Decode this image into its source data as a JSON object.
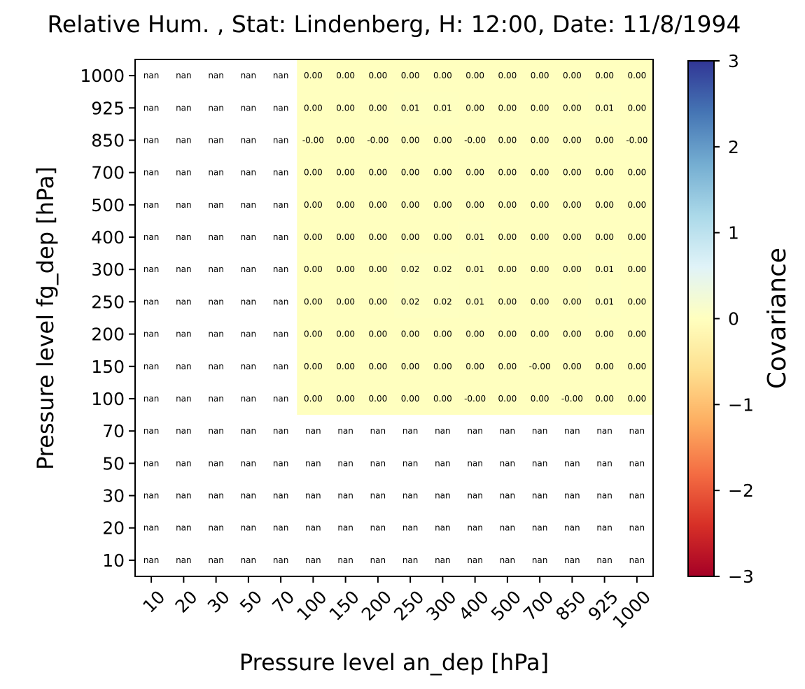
{
  "chart_data": {
    "type": "heatmap",
    "title": "Relative Hum. , Stat: Lindenberg, H: 12:00, Date: 11/8/1994",
    "xlabel": "Pressure level an_dep [hPa]",
    "ylabel": "Pressure level fg_dep [hPa]",
    "x_categories": [
      "10",
      "20",
      "30",
      "50",
      "70",
      "100",
      "150",
      "200",
      "250",
      "300",
      "400",
      "500",
      "700",
      "850",
      "925",
      "1000"
    ],
    "y_categories": [
      "1000",
      "925",
      "850",
      "700",
      "500",
      "400",
      "300",
      "250",
      "200",
      "150",
      "100",
      "70",
      "50",
      "30",
      "20",
      "10"
    ],
    "cells": [
      [
        "nan",
        "nan",
        "nan",
        "nan",
        "nan",
        "0.00",
        "0.00",
        "0.00",
        "0.00",
        "0.00",
        "0.00",
        "0.00",
        "0.00",
        "0.00",
        "0.00",
        "0.00"
      ],
      [
        "nan",
        "nan",
        "nan",
        "nan",
        "nan",
        "0.00",
        "0.00",
        "0.00",
        "0.01",
        "0.01",
        "0.00",
        "0.00",
        "0.00",
        "0.00",
        "0.01",
        "0.00"
      ],
      [
        "nan",
        "nan",
        "nan",
        "nan",
        "nan",
        "-0.00",
        "0.00",
        "-0.00",
        "0.00",
        "0.00",
        "-0.00",
        "0.00",
        "0.00",
        "0.00",
        "0.00",
        "-0.00"
      ],
      [
        "nan",
        "nan",
        "nan",
        "nan",
        "nan",
        "0.00",
        "0.00",
        "0.00",
        "0.00",
        "0.00",
        "0.00",
        "0.00",
        "0.00",
        "0.00",
        "0.00",
        "0.00"
      ],
      [
        "nan",
        "nan",
        "nan",
        "nan",
        "nan",
        "0.00",
        "0.00",
        "0.00",
        "0.00",
        "0.00",
        "0.00",
        "0.00",
        "0.00",
        "0.00",
        "0.00",
        "0.00"
      ],
      [
        "nan",
        "nan",
        "nan",
        "nan",
        "nan",
        "0.00",
        "0.00",
        "0.00",
        "0.00",
        "0.00",
        "0.01",
        "0.00",
        "0.00",
        "0.00",
        "0.00",
        "0.00"
      ],
      [
        "nan",
        "nan",
        "nan",
        "nan",
        "nan",
        "0.00",
        "0.00",
        "0.00",
        "0.02",
        "0.02",
        "0.01",
        "0.00",
        "0.00",
        "0.00",
        "0.01",
        "0.00"
      ],
      [
        "nan",
        "nan",
        "nan",
        "nan",
        "nan",
        "0.00",
        "0.00",
        "0.00",
        "0.02",
        "0.02",
        "0.01",
        "0.00",
        "0.00",
        "0.00",
        "0.01",
        "0.00"
      ],
      [
        "nan",
        "nan",
        "nan",
        "nan",
        "nan",
        "0.00",
        "0.00",
        "0.00",
        "0.00",
        "0.00",
        "0.00",
        "0.00",
        "0.00",
        "0.00",
        "0.00",
        "0.00"
      ],
      [
        "nan",
        "nan",
        "nan",
        "nan",
        "nan",
        "0.00",
        "0.00",
        "0.00",
        "0.00",
        "0.00",
        "0.00",
        "0.00",
        "-0.00",
        "0.00",
        "0.00",
        "0.00"
      ],
      [
        "nan",
        "nan",
        "nan",
        "nan",
        "nan",
        "0.00",
        "0.00",
        "0.00",
        "0.00",
        "0.00",
        "-0.00",
        "0.00",
        "0.00",
        "-0.00",
        "0.00",
        "0.00"
      ],
      [
        "nan",
        "nan",
        "nan",
        "nan",
        "nan",
        "nan",
        "nan",
        "nan",
        "nan",
        "nan",
        "nan",
        "nan",
        "nan",
        "nan",
        "nan",
        "nan"
      ],
      [
        "nan",
        "nan",
        "nan",
        "nan",
        "nan",
        "nan",
        "nan",
        "nan",
        "nan",
        "nan",
        "nan",
        "nan",
        "nan",
        "nan",
        "nan",
        "nan"
      ],
      [
        "nan",
        "nan",
        "nan",
        "nan",
        "nan",
        "nan",
        "nan",
        "nan",
        "nan",
        "nan",
        "nan",
        "nan",
        "nan",
        "nan",
        "nan",
        "nan"
      ],
      [
        "nan",
        "nan",
        "nan",
        "nan",
        "nan",
        "nan",
        "nan",
        "nan",
        "nan",
        "nan",
        "nan",
        "nan",
        "nan",
        "nan",
        "nan",
        "nan"
      ],
      [
        "nan",
        "nan",
        "nan",
        "nan",
        "nan",
        "nan",
        "nan",
        "nan",
        "nan",
        "nan",
        "nan",
        "nan",
        "nan",
        "nan",
        "nan",
        "nan"
      ]
    ],
    "colorbar": {
      "label": "Covariance",
      "range": [
        -3,
        3
      ],
      "ticks": [
        3,
        2,
        1,
        0,
        -1,
        -2,
        -3
      ],
      "tick_labels": [
        "3",
        "2",
        "1",
        "0",
        "−1",
        "−2",
        "−3"
      ],
      "colormap": "RdYlBu",
      "stops": [
        "#a50026",
        "#d73027",
        "#f46d43",
        "#fdae61",
        "#fee090",
        "#ffffbf",
        "#e0f3f8",
        "#abd9e9",
        "#74add1",
        "#4575b4",
        "#313695"
      ]
    },
    "nan_color": "#ffffff",
    "grid": false
  }
}
